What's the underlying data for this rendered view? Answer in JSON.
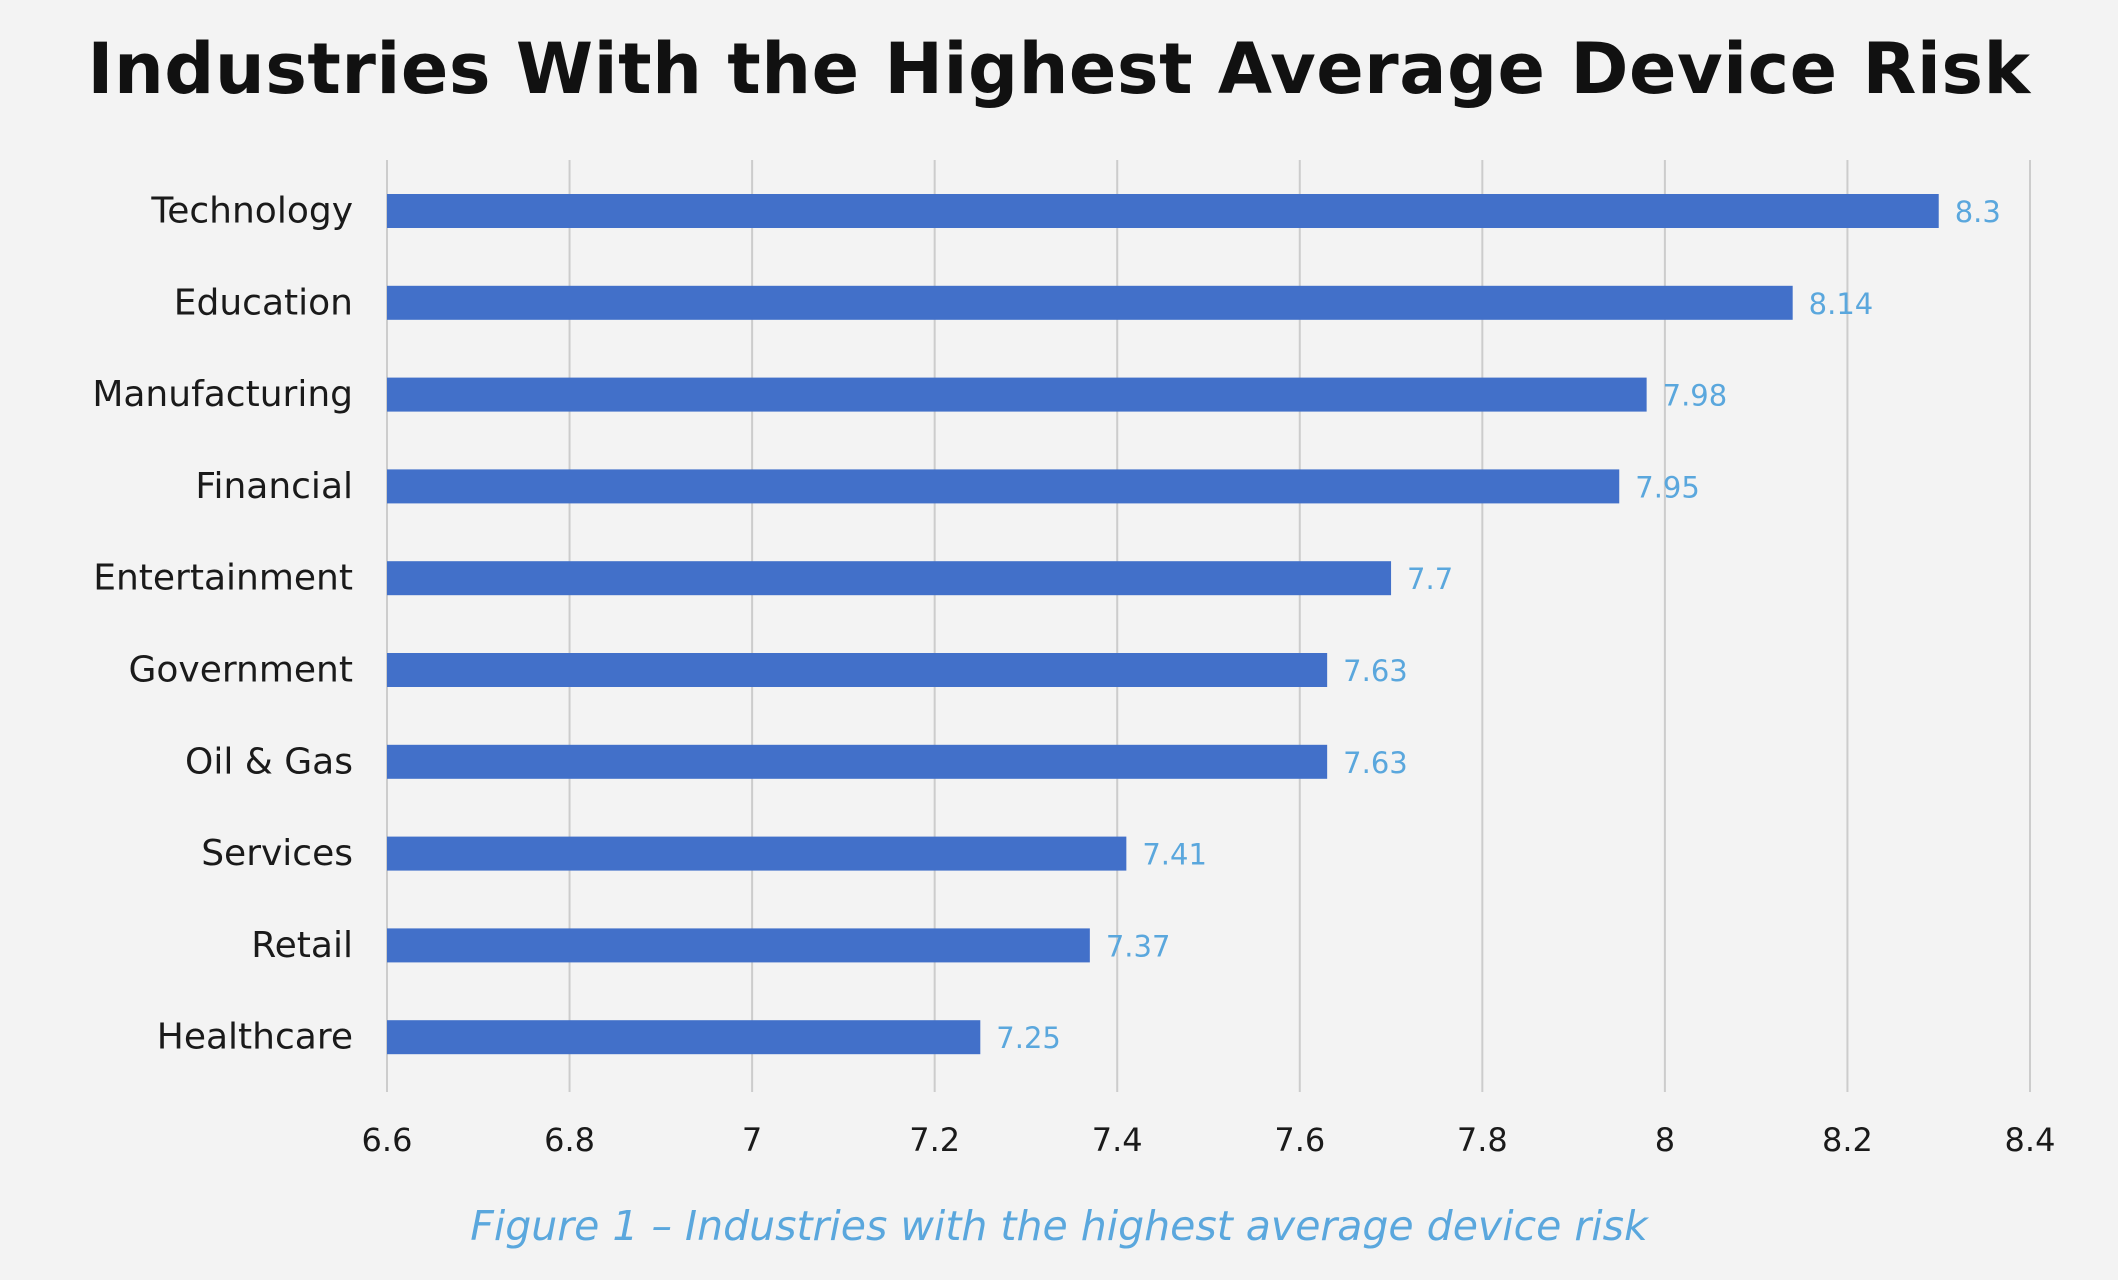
{
  "chart_data": {
    "type": "bar",
    "orientation": "horizontal",
    "title": "Industries With the Highest Average Device Risk",
    "categories": [
      "Technology",
      "Education",
      "Manufacturing",
      "Financial",
      "Entertainment",
      "Government",
      "Oil & Gas",
      "Services",
      "Retail",
      "Healthcare"
    ],
    "values": [
      8.3,
      8.14,
      7.98,
      7.95,
      7.7,
      7.63,
      7.63,
      7.41,
      7.37,
      7.25
    ],
    "value_labels": [
      "8.3",
      "8.14",
      "7.98",
      "7.95",
      "7.7",
      "7.63",
      "7.63",
      "7.41",
      "7.37",
      "7.25"
    ],
    "xlim": [
      6.6,
      8.4
    ],
    "xticks": [
      6.6,
      6.8,
      7,
      7.2,
      7.4,
      7.6,
      7.8,
      8,
      8.2,
      8.4
    ],
    "xtick_labels": [
      "6.6",
      "6.8",
      "7",
      "7.2",
      "7.4",
      "7.6",
      "7.8",
      "8",
      "8.2",
      "8.4"
    ],
    "grid": "vertical",
    "legend": "none",
    "caption": "Figure 1 – Industries with the highest average device risk"
  },
  "colors": {
    "bar": "#4270c9",
    "value_label": "#5aa7dd",
    "grid": "#cccccc",
    "background": "#f3f3f3",
    "caption": "#5aa7dd"
  }
}
